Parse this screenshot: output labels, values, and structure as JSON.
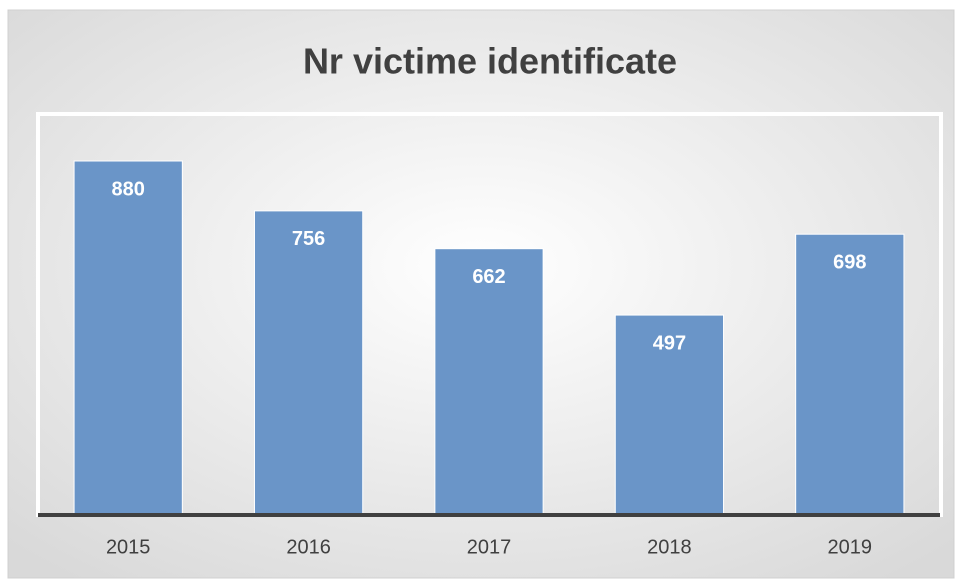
{
  "chart_data": {
    "type": "bar",
    "title": "Nr victime identificate",
    "categories": [
      "2015",
      "2016",
      "2017",
      "2018",
      "2019"
    ],
    "values": [
      880,
      756,
      662,
      497,
      698
    ],
    "color": "#6a95c8"
  }
}
